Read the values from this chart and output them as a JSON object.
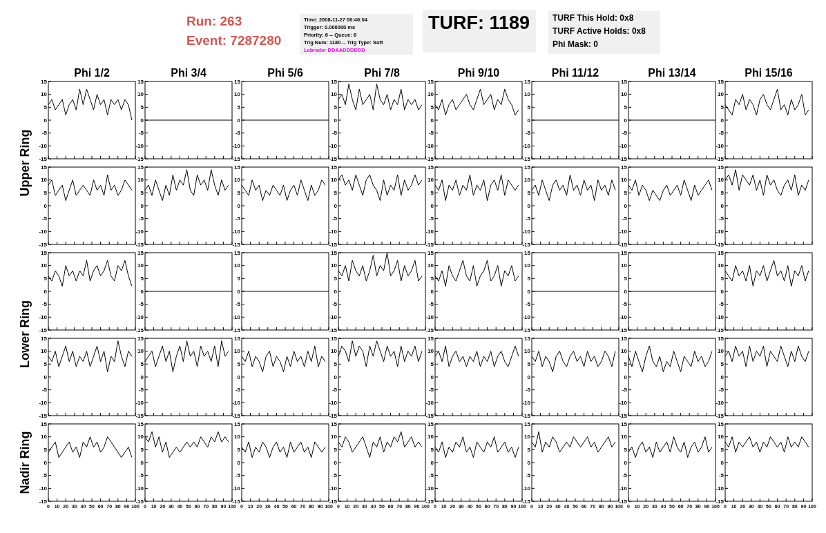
{
  "chart_data": [
    {
      "type": "line",
      "annotations": [
        "Run: 263",
        "Event: 7287280",
        "Time: 2008-11-27 00:46:04",
        "Trigger: 0.000000 ms",
        "Priority: 6 -- Queue: 6",
        "Trig Num: 1180 -- Trig Type: Soft",
        "Labrador DDAADDDDDD",
        "TURF: 1189",
        "TURF This Hold: 0x8",
        "TURF Active Holds: 0x8",
        "Phi Mask: 0"
      ],
      "title": "Phi 1/2",
      "ylabel": "Upper Ring",
      "tick_labels": "y",
      "color": "#000000",
      "x": [
        0,
        4,
        8,
        12,
        16,
        20,
        24,
        28,
        32,
        36,
        40,
        44,
        48,
        52,
        56,
        60,
        64,
        68,
        72,
        76,
        80,
        84,
        88,
        92,
        96
      ],
      "values": [
        6,
        8,
        4,
        6,
        8,
        2,
        6,
        8,
        4,
        12,
        6,
        12,
        8,
        4,
        10,
        6,
        8,
        2,
        8,
        6,
        8,
        4,
        8,
        6,
        0
      ],
      "xlim": [
        0,
        100
      ],
      "ylim": [
        -15,
        15
      ],
      "xticks": [
        0,
        10,
        20,
        30,
        40,
        50,
        60,
        70,
        80,
        90,
        100
      ],
      "yticks": [
        -15,
        -10,
        -5,
        0,
        5,
        10,
        15
      ]
    },
    {
      "type": "line",
      "title": "Phi 3/4",
      "tick_labels": "y",
      "color": "#000000",
      "x": [
        0,
        100
      ],
      "values": [
        0,
        0
      ],
      "xlim": [
        0,
        100
      ],
      "ylim": [
        -15,
        15
      ],
      "xticks": [
        0,
        10,
        20,
        30,
        40,
        50,
        60,
        70,
        80,
        90,
        100
      ],
      "yticks": [
        -15,
        -10,
        -5,
        0,
        5,
        10,
        15
      ]
    },
    {
      "type": "line",
      "title": "Phi 5/6",
      "tick_labels": "y",
      "color": "#000000",
      "x": [
        0,
        100
      ],
      "values": [
        0,
        0
      ],
      "xlim": [
        0,
        100
      ],
      "ylim": [
        -15,
        15
      ],
      "xticks": [
        0,
        10,
        20,
        30,
        40,
        50,
        60,
        70,
        80,
        90,
        100
      ],
      "yticks": [
        -15,
        -10,
        -5,
        0,
        5,
        10,
        15
      ]
    },
    {
      "type": "line",
      "title": "Phi 7/8",
      "tick_labels": "y",
      "color": "#000000",
      "x": [
        0,
        4,
        8,
        12,
        16,
        20,
        24,
        28,
        32,
        36,
        40,
        44,
        48,
        52,
        56,
        60,
        64,
        68,
        72,
        76,
        80,
        84,
        88,
        92,
        96
      ],
      "values": [
        8,
        10,
        6,
        14,
        8,
        4,
        12,
        6,
        8,
        10,
        4,
        14,
        8,
        6,
        10,
        4,
        8,
        6,
        12,
        4,
        8,
        6,
        8,
        4,
        6
      ],
      "xlim": [
        0,
        100
      ],
      "ylim": [
        -15,
        15
      ],
      "xticks": [
        0,
        10,
        20,
        30,
        40,
        50,
        60,
        70,
        80,
        90,
        100
      ],
      "yticks": [
        -15,
        -10,
        -5,
        0,
        5,
        10,
        15
      ]
    },
    {
      "type": "line",
      "title": "Phi 9/10",
      "tick_labels": "y",
      "color": "#000000",
      "x": [
        0,
        4,
        8,
        12,
        16,
        20,
        24,
        28,
        32,
        36,
        40,
        44,
        48,
        52,
        56,
        60,
        64,
        68,
        72,
        76,
        80,
        84,
        88,
        92,
        96
      ],
      "values": [
        6,
        4,
        8,
        2,
        6,
        8,
        4,
        6,
        8,
        10,
        6,
        4,
        8,
        12,
        6,
        8,
        10,
        4,
        8,
        6,
        12,
        8,
        6,
        2,
        4
      ],
      "xlim": [
        0,
        100
      ],
      "ylim": [
        -15,
        15
      ],
      "xticks": [
        0,
        10,
        20,
        30,
        40,
        50,
        60,
        70,
        80,
        90,
        100
      ],
      "yticks": [
        -15,
        -10,
        -5,
        0,
        5,
        10,
        15
      ]
    },
    {
      "type": "line",
      "title": "Phi 11/12",
      "tick_labels": "y",
      "color": "#000000",
      "x": [
        0,
        100
      ],
      "values": [
        0,
        0
      ],
      "xlim": [
        0,
        100
      ],
      "ylim": [
        -15,
        15
      ],
      "xticks": [
        0,
        10,
        20,
        30,
        40,
        50,
        60,
        70,
        80,
        90,
        100
      ],
      "yticks": [
        -15,
        -10,
        -5,
        0,
        5,
        10,
        15
      ]
    },
    {
      "type": "line",
      "title": "Phi 13/14",
      "tick_labels": "y",
      "color": "#000000",
      "x": [
        0,
        100
      ],
      "values": [
        0,
        0
      ],
      "xlim": [
        0,
        100
      ],
      "ylim": [
        -15,
        15
      ],
      "xticks": [
        0,
        10,
        20,
        30,
        40,
        50,
        60,
        70,
        80,
        90,
        100
      ],
      "yticks": [
        -15,
        -10,
        -5,
        0,
        5,
        10,
        15
      ]
    },
    {
      "type": "line",
      "title": "Phi 15/16",
      "tick_labels": "y",
      "color": "#000000",
      "x": [
        0,
        4,
        8,
        12,
        16,
        20,
        24,
        28,
        32,
        36,
        40,
        44,
        48,
        52,
        56,
        60,
        64,
        68,
        72,
        76,
        80,
        84,
        88,
        92,
        96
      ],
      "values": [
        6,
        4,
        2,
        8,
        6,
        10,
        4,
        8,
        6,
        2,
        8,
        10,
        6,
        4,
        8,
        12,
        4,
        6,
        2,
        8,
        4,
        6,
        10,
        2,
        4
      ],
      "xlim": [
        0,
        100
      ],
      "ylim": [
        -15,
        15
      ],
      "xticks": [
        0,
        10,
        20,
        30,
        40,
        50,
        60,
        70,
        80,
        90,
        100
      ],
      "yticks": [
        -15,
        -10,
        -5,
        0,
        5,
        10,
        15
      ]
    },
    {
      "type": "line",
      "tick_labels": "y",
      "color": "#000000",
      "x": [
        0,
        4,
        8,
        12,
        16,
        20,
        24,
        28,
        32,
        36,
        40,
        44,
        48,
        52,
        56,
        60,
        64,
        68,
        72,
        76,
        80,
        84,
        88,
        92,
        96
      ],
      "values": [
        8,
        10,
        4,
        6,
        8,
        2,
        6,
        10,
        4,
        6,
        8,
        6,
        4,
        10,
        6,
        8,
        4,
        12,
        6,
        8,
        4,
        6,
        10,
        8,
        6
      ],
      "xlim": [
        0,
        100
      ],
      "ylim": [
        -15,
        15
      ],
      "xticks": [
        0,
        10,
        20,
        30,
        40,
        50,
        60,
        70,
        80,
        90,
        100
      ],
      "yticks": [
        -15,
        -10,
        -5,
        0,
        5,
        10,
        15
      ]
    },
    {
      "type": "line",
      "tick_labels": "y",
      "color": "#000000",
      "x": [
        0,
        4,
        8,
        12,
        16,
        20,
        24,
        28,
        32,
        36,
        40,
        44,
        48,
        52,
        56,
        60,
        64,
        68,
        72,
        76,
        80,
        84,
        88,
        92,
        96
      ],
      "values": [
        6,
        8,
        4,
        10,
        6,
        2,
        8,
        4,
        12,
        6,
        10,
        8,
        14,
        6,
        4,
        12,
        8,
        10,
        6,
        14,
        8,
        4,
        10,
        6,
        8
      ],
      "xlim": [
        0,
        100
      ],
      "ylim": [
        -15,
        15
      ],
      "xticks": [
        0,
        10,
        20,
        30,
        40,
        50,
        60,
        70,
        80,
        90,
        100
      ],
      "yticks": [
        -15,
        -10,
        -5,
        0,
        5,
        10,
        15
      ]
    },
    {
      "type": "line",
      "tick_labels": "y",
      "color": "#000000",
      "x": [
        0,
        4,
        8,
        12,
        16,
        20,
        24,
        28,
        32,
        36,
        40,
        44,
        48,
        52,
        56,
        60,
        64,
        68,
        72,
        76,
        80,
        84,
        88,
        92,
        96
      ],
      "values": [
        8,
        6,
        4,
        10,
        6,
        8,
        2,
        6,
        4,
        8,
        6,
        4,
        8,
        2,
        6,
        8,
        4,
        10,
        6,
        2,
        8,
        4,
        6,
        10,
        8
      ],
      "xlim": [
        0,
        100
      ],
      "ylim": [
        -15,
        15
      ],
      "xticks": [
        0,
        10,
        20,
        30,
        40,
        50,
        60,
        70,
        80,
        90,
        100
      ],
      "yticks": [
        -15,
        -10,
        -5,
        0,
        5,
        10,
        15
      ]
    },
    {
      "type": "line",
      "tick_labels": "y",
      "color": "#000000",
      "x": [
        0,
        4,
        8,
        12,
        16,
        20,
        24,
        28,
        32,
        36,
        40,
        44,
        48,
        52,
        56,
        60,
        64,
        68,
        72,
        76,
        80,
        84,
        88,
        92,
        96
      ],
      "values": [
        10,
        12,
        8,
        10,
        6,
        12,
        8,
        4,
        10,
        12,
        8,
        6,
        2,
        10,
        4,
        8,
        6,
        12,
        4,
        10,
        6,
        8,
        12,
        8,
        10
      ],
      "xlim": [
        0,
        100
      ],
      "ylim": [
        -15,
        15
      ],
      "xticks": [
        0,
        10,
        20,
        30,
        40,
        50,
        60,
        70,
        80,
        90,
        100
      ],
      "yticks": [
        -15,
        -10,
        -5,
        0,
        5,
        10,
        15
      ]
    },
    {
      "type": "line",
      "tick_labels": "y",
      "color": "#000000",
      "x": [
        0,
        4,
        8,
        12,
        16,
        20,
        24,
        28,
        32,
        36,
        40,
        44,
        48,
        52,
        56,
        60,
        64,
        68,
        72,
        76,
        80,
        84,
        88,
        92,
        96
      ],
      "values": [
        8,
        6,
        10,
        2,
        8,
        6,
        10,
        4,
        8,
        6,
        12,
        4,
        8,
        6,
        10,
        2,
        8,
        10,
        6,
        12,
        4,
        10,
        8,
        6,
        8
      ],
      "xlim": [
        0,
        100
      ],
      "ylim": [
        -15,
        15
      ],
      "xticks": [
        0,
        10,
        20,
        30,
        40,
        50,
        60,
        70,
        80,
        90,
        100
      ],
      "yticks": [
        -15,
        -10,
        -5,
        0,
        5,
        10,
        15
      ]
    },
    {
      "type": "line",
      "tick_labels": "y",
      "color": "#000000",
      "x": [
        0,
        4,
        8,
        12,
        16,
        20,
        24,
        28,
        32,
        36,
        40,
        44,
        48,
        52,
        56,
        60,
        64,
        68,
        72,
        76,
        80,
        84,
        88,
        92,
        96
      ],
      "values": [
        6,
        8,
        4,
        10,
        6,
        2,
        8,
        10,
        6,
        8,
        4,
        12,
        6,
        8,
        4,
        10,
        6,
        8,
        2,
        10,
        6,
        8,
        4,
        10,
        6
      ],
      "xlim": [
        0,
        100
      ],
      "ylim": [
        -15,
        15
      ],
      "xticks": [
        0,
        10,
        20,
        30,
        40,
        50,
        60,
        70,
        80,
        90,
        100
      ],
      "yticks": [
        -15,
        -10,
        -5,
        0,
        5,
        10,
        15
      ]
    },
    {
      "type": "line",
      "tick_labels": "y",
      "color": "#000000",
      "x": [
        0,
        4,
        8,
        12,
        16,
        20,
        24,
        28,
        32,
        36,
        40,
        44,
        48,
        52,
        56,
        60,
        64,
        68,
        72,
        76,
        80,
        84,
        88,
        92,
        96
      ],
      "values": [
        8,
        6,
        10,
        4,
        8,
        6,
        2,
        6,
        4,
        2,
        6,
        8,
        4,
        6,
        8,
        4,
        10,
        6,
        2,
        8,
        4,
        6,
        8,
        10,
        6
      ],
      "xlim": [
        0,
        100
      ],
      "ylim": [
        -15,
        15
      ],
      "xticks": [
        0,
        10,
        20,
        30,
        40,
        50,
        60,
        70,
        80,
        90,
        100
      ],
      "yticks": [
        -15,
        -10,
        -5,
        0,
        5,
        10,
        15
      ]
    },
    {
      "type": "line",
      "tick_labels": "y",
      "color": "#000000",
      "x": [
        0,
        4,
        8,
        12,
        16,
        20,
        24,
        28,
        32,
        36,
        40,
        44,
        48,
        52,
        56,
        60,
        64,
        68,
        72,
        76,
        80,
        84,
        88,
        92,
        96
      ],
      "values": [
        10,
        12,
        8,
        14,
        6,
        12,
        10,
        8,
        12,
        6,
        10,
        4,
        12,
        8,
        10,
        6,
        4,
        8,
        10,
        6,
        12,
        4,
        8,
        6,
        10
      ],
      "xlim": [
        0,
        100
      ],
      "ylim": [
        -15,
        15
      ],
      "xticks": [
        0,
        10,
        20,
        30,
        40,
        50,
        60,
        70,
        80,
        90,
        100
      ],
      "yticks": [
        -15,
        -10,
        -5,
        0,
        5,
        10,
        15
      ]
    },
    {
      "type": "line",
      "ylabel": "Lower Ring",
      "tick_labels": "y",
      "color": "#000000",
      "x": [
        0,
        4,
        8,
        12,
        16,
        20,
        24,
        28,
        32,
        36,
        40,
        44,
        48,
        52,
        56,
        60,
        64,
        68,
        72,
        76,
        80,
        84,
        88,
        92,
        96
      ],
      "values": [
        6,
        4,
        8,
        6,
        2,
        10,
        6,
        8,
        4,
        8,
        6,
        12,
        4,
        8,
        10,
        6,
        8,
        12,
        6,
        4,
        10,
        8,
        12,
        6,
        2
      ],
      "xlim": [
        0,
        100
      ],
      "ylim": [
        -15,
        15
      ],
      "xticks": [
        0,
        10,
        20,
        30,
        40,
        50,
        60,
        70,
        80,
        90,
        100
      ],
      "yticks": [
        -15,
        -10,
        -5,
        0,
        5,
        10,
        15
      ]
    },
    {
      "type": "line",
      "tick_labels": "y",
      "color": "#000000",
      "x": [
        0,
        100
      ],
      "values": [
        0,
        0
      ],
      "xlim": [
        0,
        100
      ],
      "ylim": [
        -15,
        15
      ],
      "xticks": [
        0,
        10,
        20,
        30,
        40,
        50,
        60,
        70,
        80,
        90,
        100
      ],
      "yticks": [
        -15,
        -10,
        -5,
        0,
        5,
        10,
        15
      ]
    },
    {
      "type": "line",
      "tick_labels": "y",
      "color": "#000000",
      "x": [
        0,
        100
      ],
      "values": [
        0,
        0
      ],
      "xlim": [
        0,
        100
      ],
      "ylim": [
        -15,
        15
      ],
      "xticks": [
        0,
        10,
        20,
        30,
        40,
        50,
        60,
        70,
        80,
        90,
        100
      ],
      "yticks": [
        -15,
        -10,
        -5,
        0,
        5,
        10,
        15
      ]
    },
    {
      "type": "line",
      "tick_labels": "y",
      "color": "#000000",
      "x": [
        0,
        4,
        8,
        12,
        16,
        20,
        24,
        28,
        32,
        36,
        40,
        44,
        48,
        52,
        56,
        60,
        64,
        68,
        72,
        76,
        80,
        84,
        88,
        92,
        96
      ],
      "values": [
        8,
        6,
        10,
        4,
        12,
        8,
        6,
        10,
        4,
        8,
        14,
        6,
        10,
        8,
        15,
        6,
        8,
        12,
        4,
        10,
        6,
        8,
        12,
        4,
        6
      ],
      "xlim": [
        0,
        100
      ],
      "ylim": [
        -15,
        15
      ],
      "xticks": [
        0,
        10,
        20,
        30,
        40,
        50,
        60,
        70,
        80,
        90,
        100
      ],
      "yticks": [
        -15,
        -10,
        -5,
        0,
        5,
        10,
        15
      ]
    },
    {
      "type": "line",
      "tick_labels": "y",
      "color": "#000000",
      "x": [
        0,
        4,
        8,
        12,
        16,
        20,
        24,
        28,
        32,
        36,
        40,
        44,
        48,
        52,
        56,
        60,
        64,
        68,
        72,
        76,
        80,
        84,
        88,
        92,
        96
      ],
      "values": [
        6,
        4,
        8,
        2,
        10,
        6,
        4,
        8,
        12,
        6,
        4,
        10,
        2,
        6,
        8,
        12,
        4,
        6,
        10,
        2,
        8,
        6,
        10,
        4,
        6
      ],
      "xlim": [
        0,
        100
      ],
      "ylim": [
        -15,
        15
      ],
      "xticks": [
        0,
        10,
        20,
        30,
        40,
        50,
        60,
        70,
        80,
        90,
        100
      ],
      "yticks": [
        -15,
        -10,
        -5,
        0,
        5,
        10,
        15
      ]
    },
    {
      "type": "line",
      "tick_labels": "y",
      "color": "#000000",
      "x": [
        0,
        100
      ],
      "values": [
        0,
        0
      ],
      "xlim": [
        0,
        100
      ],
      "ylim": [
        -15,
        15
      ],
      "xticks": [
        0,
        10,
        20,
        30,
        40,
        50,
        60,
        70,
        80,
        90,
        100
      ],
      "yticks": [
        -15,
        -10,
        -5,
        0,
        5,
        10,
        15
      ]
    },
    {
      "type": "line",
      "tick_labels": "y",
      "color": "#000000",
      "x": [
        0,
        100
      ],
      "values": [
        0,
        0
      ],
      "xlim": [
        0,
        100
      ],
      "ylim": [
        -15,
        15
      ],
      "xticks": [
        0,
        10,
        20,
        30,
        40,
        50,
        60,
        70,
        80,
        90,
        100
      ],
      "yticks": [
        -15,
        -10,
        -5,
        0,
        5,
        10,
        15
      ]
    },
    {
      "type": "line",
      "tick_labels": "y",
      "color": "#000000",
      "x": [
        0,
        4,
        8,
        12,
        16,
        20,
        24,
        28,
        32,
        36,
        40,
        44,
        48,
        52,
        56,
        60,
        64,
        68,
        72,
        76,
        80,
        84,
        88,
        92,
        96
      ],
      "values": [
        8,
        6,
        4,
        10,
        6,
        8,
        4,
        10,
        2,
        8,
        6,
        10,
        4,
        8,
        12,
        6,
        8,
        4,
        10,
        2,
        8,
        6,
        10,
        4,
        8
      ],
      "xlim": [
        0,
        100
      ],
      "ylim": [
        -15,
        15
      ],
      "xticks": [
        0,
        10,
        20,
        30,
        40,
        50,
        60,
        70,
        80,
        90,
        100
      ],
      "yticks": [
        -15,
        -10,
        -5,
        0,
        5,
        10,
        15
      ]
    },
    {
      "type": "line",
      "tick_labels": "y",
      "color": "#000000",
      "x": [
        0,
        4,
        8,
        12,
        16,
        20,
        24,
        28,
        32,
        36,
        40,
        44,
        48,
        52,
        56,
        60,
        64,
        68,
        72,
        76,
        80,
        84,
        88,
        92,
        96
      ],
      "values": [
        8,
        6,
        10,
        4,
        8,
        12,
        6,
        10,
        4,
        8,
        6,
        10,
        4,
        8,
        12,
        6,
        10,
        2,
        8,
        6,
        14,
        8,
        4,
        10,
        8
      ],
      "xlim": [
        0,
        100
      ],
      "ylim": [
        -15,
        15
      ],
      "xticks": [
        0,
        10,
        20,
        30,
        40,
        50,
        60,
        70,
        80,
        90,
        100
      ],
      "yticks": [
        -15,
        -10,
        -5,
        0,
        5,
        10,
        15
      ]
    },
    {
      "type": "line",
      "tick_labels": "y",
      "color": "#000000",
      "x": [
        0,
        4,
        8,
        12,
        16,
        20,
        24,
        28,
        32,
        36,
        40,
        44,
        48,
        52,
        56,
        60,
        64,
        68,
        72,
        76,
        80,
        84,
        88,
        92,
        96
      ],
      "values": [
        6,
        8,
        10,
        4,
        8,
        12,
        6,
        10,
        2,
        8,
        12,
        6,
        14,
        8,
        10,
        4,
        12,
        8,
        10,
        6,
        12,
        4,
        14,
        8,
        10
      ],
      "xlim": [
        0,
        100
      ],
      "ylim": [
        -15,
        15
      ],
      "xticks": [
        0,
        10,
        20,
        30,
        40,
        50,
        60,
        70,
        80,
        90,
        100
      ],
      "yticks": [
        -15,
        -10,
        -5,
        0,
        5,
        10,
        15
      ]
    },
    {
      "type": "line",
      "tick_labels": "y",
      "color": "#000000",
      "x": [
        0,
        4,
        8,
        12,
        16,
        20,
        24,
        28,
        32,
        36,
        40,
        44,
        48,
        52,
        56,
        60,
        64,
        68,
        72,
        76,
        80,
        84,
        88,
        92,
        96
      ],
      "values": [
        8,
        6,
        10,
        4,
        8,
        6,
        2,
        8,
        10,
        4,
        8,
        6,
        2,
        8,
        4,
        10,
        6,
        8,
        4,
        10,
        6,
        12,
        4,
        8,
        6
      ],
      "xlim": [
        0,
        100
      ],
      "ylim": [
        -15,
        15
      ],
      "xticks": [
        0,
        10,
        20,
        30,
        40,
        50,
        60,
        70,
        80,
        90,
        100
      ],
      "yticks": [
        -15,
        -10,
        -5,
        0,
        5,
        10,
        15
      ]
    },
    {
      "type": "line",
      "tick_labels": "y",
      "color": "#000000",
      "x": [
        0,
        4,
        8,
        12,
        16,
        20,
        24,
        28,
        32,
        36,
        40,
        44,
        48,
        52,
        56,
        60,
        64,
        68,
        72,
        76,
        80,
        84,
        88,
        92,
        96
      ],
      "values": [
        8,
        12,
        10,
        6,
        14,
        8,
        12,
        10,
        4,
        12,
        8,
        14,
        10,
        6,
        12,
        8,
        10,
        4,
        12,
        6,
        10,
        8,
        12,
        6,
        10
      ],
      "xlim": [
        0,
        100
      ],
      "ylim": [
        -15,
        15
      ],
      "xticks": [
        0,
        10,
        20,
        30,
        40,
        50,
        60,
        70,
        80,
        90,
        100
      ],
      "yticks": [
        -15,
        -10,
        -5,
        0,
        5,
        10,
        15
      ]
    },
    {
      "type": "line",
      "tick_labels": "y",
      "color": "#000000",
      "x": [
        0,
        4,
        8,
        12,
        16,
        20,
        24,
        28,
        32,
        36,
        40,
        44,
        48,
        52,
        56,
        60,
        64,
        68,
        72,
        76,
        80,
        84,
        88,
        92,
        96
      ],
      "values": [
        8,
        10,
        6,
        12,
        4,
        8,
        10,
        6,
        8,
        4,
        8,
        6,
        10,
        4,
        8,
        6,
        10,
        4,
        8,
        10,
        6,
        4,
        8,
        12,
        8
      ],
      "xlim": [
        0,
        100
      ],
      "ylim": [
        -15,
        15
      ],
      "xticks": [
        0,
        10,
        20,
        30,
        40,
        50,
        60,
        70,
        80,
        90,
        100
      ],
      "yticks": [
        -15,
        -10,
        -5,
        0,
        5,
        10,
        15
      ]
    },
    {
      "type": "line",
      "tick_labels": "y",
      "color": "#000000",
      "x": [
        0,
        4,
        8,
        12,
        16,
        20,
        24,
        28,
        32,
        36,
        40,
        44,
        48,
        52,
        56,
        60,
        64,
        68,
        72,
        76,
        80,
        84,
        88,
        92,
        96
      ],
      "values": [
        8,
        6,
        10,
        4,
        8,
        6,
        2,
        8,
        10,
        6,
        4,
        8,
        10,
        6,
        8,
        4,
        10,
        6,
        8,
        4,
        6,
        10,
        8,
        4,
        10
      ],
      "xlim": [
        0,
        100
      ],
      "ylim": [
        -15,
        15
      ],
      "xticks": [
        0,
        10,
        20,
        30,
        40,
        50,
        60,
        70,
        80,
        90,
        100
      ],
      "yticks": [
        -15,
        -10,
        -5,
        0,
        5,
        10,
        15
      ]
    },
    {
      "type": "line",
      "tick_labels": "y",
      "color": "#000000",
      "x": [
        0,
        4,
        8,
        12,
        16,
        20,
        24,
        28,
        32,
        36,
        40,
        44,
        48,
        52,
        56,
        60,
        64,
        68,
        72,
        76,
        80,
        84,
        88,
        92,
        96
      ],
      "values": [
        8,
        4,
        10,
        6,
        2,
        8,
        12,
        6,
        4,
        8,
        2,
        6,
        4,
        10,
        6,
        2,
        8,
        6,
        4,
        10,
        6,
        8,
        4,
        6,
        10
      ],
      "xlim": [
        0,
        100
      ],
      "ylim": [
        -15,
        15
      ],
      "xticks": [
        0,
        10,
        20,
        30,
        40,
        50,
        60,
        70,
        80,
        90,
        100
      ],
      "yticks": [
        -15,
        -10,
        -5,
        0,
        5,
        10,
        15
      ]
    },
    {
      "type": "line",
      "tick_labels": "y",
      "color": "#000000",
      "x": [
        0,
        4,
        8,
        12,
        16,
        20,
        24,
        28,
        32,
        36,
        40,
        44,
        48,
        52,
        56,
        60,
        64,
        68,
        72,
        76,
        80,
        84,
        88,
        92,
        96
      ],
      "values": [
        8,
        10,
        6,
        12,
        8,
        10,
        4,
        12,
        6,
        10,
        8,
        12,
        4,
        10,
        8,
        6,
        12,
        8,
        4,
        10,
        6,
        12,
        8,
        6,
        10
      ],
      "xlim": [
        0,
        100
      ],
      "ylim": [
        -15,
        15
      ],
      "xticks": [
        0,
        10,
        20,
        30,
        40,
        50,
        60,
        70,
        80,
        90,
        100
      ],
      "yticks": [
        -15,
        -10,
        -5,
        0,
        5,
        10,
        15
      ]
    },
    {
      "type": "line",
      "ylabel": "Nadir Ring",
      "color": "#000000",
      "x": [
        0,
        4,
        8,
        12,
        16,
        20,
        24,
        28,
        32,
        36,
        40,
        44,
        48,
        52,
        56,
        60,
        64,
        68,
        72,
        76,
        80,
        84,
        88,
        92,
        96
      ],
      "values": [
        4,
        6,
        8,
        2,
        4,
        6,
        8,
        4,
        6,
        2,
        8,
        6,
        10,
        6,
        8,
        4,
        6,
        10,
        8,
        6,
        4,
        2,
        4,
        6,
        2
      ],
      "xlim": [
        0,
        100
      ],
      "ylim": [
        -15,
        15
      ],
      "xticks": [
        0,
        10,
        20,
        30,
        40,
        50,
        60,
        70,
        80,
        90,
        100
      ],
      "yticks": [
        -15,
        -10,
        -5,
        0,
        5,
        10,
        15
      ]
    },
    {
      "type": "line",
      "color": "#000000",
      "x": [
        0,
        4,
        8,
        12,
        16,
        20,
        24,
        28,
        32,
        36,
        40,
        44,
        48,
        52,
        56,
        60,
        64,
        68,
        72,
        76,
        80,
        84,
        88,
        92,
        96
      ],
      "values": [
        10,
        8,
        12,
        6,
        10,
        4,
        8,
        2,
        4,
        6,
        4,
        6,
        8,
        6,
        8,
        6,
        10,
        8,
        6,
        10,
        8,
        12,
        8,
        10,
        8
      ],
      "xlim": [
        0,
        100
      ],
      "ylim": [
        -15,
        15
      ],
      "xticks": [
        0,
        10,
        20,
        30,
        40,
        50,
        60,
        70,
        80,
        90,
        100
      ],
      "yticks": [
        -15,
        -10,
        -5,
        0,
        5,
        10,
        15
      ]
    },
    {
      "type": "line",
      "color": "#000000",
      "x": [
        0,
        4,
        8,
        12,
        16,
        20,
        24,
        28,
        32,
        36,
        40,
        44,
        48,
        52,
        56,
        60,
        64,
        68,
        72,
        76,
        80,
        84,
        88,
        92,
        96
      ],
      "values": [
        6,
        4,
        8,
        2,
        6,
        4,
        8,
        6,
        2,
        6,
        8,
        4,
        6,
        2,
        8,
        4,
        6,
        8,
        4,
        6,
        2,
        8,
        6,
        4,
        6
      ],
      "xlim": [
        0,
        100
      ],
      "ylim": [
        -15,
        15
      ],
      "xticks": [
        0,
        10,
        20,
        30,
        40,
        50,
        60,
        70,
        80,
        90,
        100
      ],
      "yticks": [
        -15,
        -10,
        -5,
        0,
        5,
        10,
        15
      ]
    },
    {
      "type": "line",
      "color": "#000000",
      "x": [
        0,
        4,
        8,
        12,
        16,
        20,
        24,
        28,
        32,
        36,
        40,
        44,
        48,
        52,
        56,
        60,
        64,
        68,
        72,
        76,
        80,
        84,
        88,
        92,
        96
      ],
      "values": [
        8,
        6,
        10,
        8,
        4,
        6,
        8,
        10,
        6,
        2,
        8,
        6,
        10,
        4,
        8,
        6,
        10,
        8,
        12,
        6,
        8,
        10,
        6,
        8,
        6
      ],
      "xlim": [
        0,
        100
      ],
      "ylim": [
        -15,
        15
      ],
      "xticks": [
        0,
        10,
        20,
        30,
        40,
        50,
        60,
        70,
        80,
        90,
        100
      ],
      "yticks": [
        -15,
        -10,
        -5,
        0,
        5,
        10,
        15
      ]
    },
    {
      "type": "line",
      "color": "#000000",
      "x": [
        0,
        4,
        8,
        12,
        16,
        20,
        24,
        28,
        32,
        36,
        40,
        44,
        48,
        52,
        56,
        60,
        64,
        68,
        72,
        76,
        80,
        84,
        88,
        92,
        96
      ],
      "values": [
        6,
        4,
        8,
        2,
        6,
        4,
        8,
        6,
        10,
        4,
        6,
        2,
        8,
        6,
        4,
        8,
        6,
        10,
        4,
        6,
        8,
        4,
        6,
        2,
        6
      ],
      "xlim": [
        0,
        100
      ],
      "ylim": [
        -15,
        15
      ],
      "xticks": [
        0,
        10,
        20,
        30,
        40,
        50,
        60,
        70,
        80,
        90,
        100
      ],
      "yticks": [
        -15,
        -10,
        -5,
        0,
        5,
        10,
        15
      ]
    },
    {
      "type": "line",
      "color": "#000000",
      "x": [
        0,
        4,
        8,
        12,
        16,
        20,
        24,
        28,
        32,
        36,
        40,
        44,
        48,
        52,
        56,
        60,
        64,
        68,
        72,
        76,
        80,
        84,
        88,
        92,
        96
      ],
      "values": [
        8,
        6,
        12,
        4,
        8,
        6,
        10,
        8,
        4,
        6,
        8,
        6,
        10,
        8,
        6,
        8,
        10,
        6,
        8,
        4,
        6,
        8,
        10,
        6,
        8
      ],
      "xlim": [
        0,
        100
      ],
      "ylim": [
        -15,
        15
      ],
      "xticks": [
        0,
        10,
        20,
        30,
        40,
        50,
        60,
        70,
        80,
        90,
        100
      ],
      "yticks": [
        -15,
        -10,
        -5,
        0,
        5,
        10,
        15
      ]
    },
    {
      "type": "line",
      "color": "#000000",
      "x": [
        0,
        4,
        8,
        12,
        16,
        20,
        24,
        28,
        32,
        36,
        40,
        44,
        48,
        52,
        56,
        60,
        64,
        68,
        72,
        76,
        80,
        84,
        88,
        92,
        96
      ],
      "values": [
        4,
        6,
        2,
        6,
        8,
        4,
        6,
        2,
        8,
        4,
        6,
        8,
        4,
        10,
        6,
        4,
        8,
        2,
        6,
        8,
        4,
        6,
        10,
        4,
        6
      ],
      "xlim": [
        0,
        100
      ],
      "ylim": [
        -15,
        15
      ],
      "xticks": [
        0,
        10,
        20,
        30,
        40,
        50,
        60,
        70,
        80,
        90,
        100
      ],
      "yticks": [
        -15,
        -10,
        -5,
        0,
        5,
        10,
        15
      ]
    },
    {
      "type": "line",
      "color": "#000000",
      "x": [
        0,
        4,
        8,
        12,
        16,
        20,
        24,
        28,
        32,
        36,
        40,
        44,
        48,
        52,
        56,
        60,
        64,
        68,
        72,
        76,
        80,
        84,
        88,
        92,
        96
      ],
      "values": [
        8,
        6,
        10,
        4,
        8,
        6,
        8,
        10,
        6,
        8,
        4,
        8,
        6,
        10,
        8,
        6,
        8,
        4,
        10,
        6,
        8,
        6,
        10,
        8,
        6
      ],
      "xlim": [
        0,
        100
      ],
      "ylim": [
        -15,
        15
      ],
      "xticks": [
        0,
        10,
        20,
        30,
        40,
        50,
        60,
        70,
        80,
        90,
        100
      ],
      "yticks": [
        -15,
        -10,
        -5,
        0,
        5,
        10,
        15
      ]
    }
  ]
}
